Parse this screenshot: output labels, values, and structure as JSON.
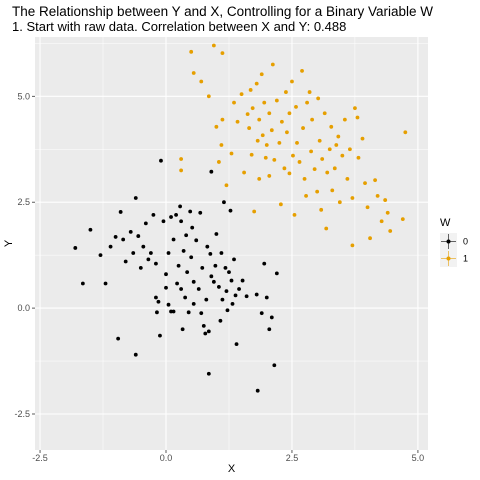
{
  "chart_data": {
    "type": "scatter",
    "title": "The Relationship between Y and X, Controlling for a Binary Variable W",
    "subtitle": "1. Start with raw data. Correlation between X and Y: 0.488",
    "xlabel": "X",
    "ylabel": "Y",
    "xlim": [
      -2.6,
      5.2
    ],
    "ylim": [
      -3.35,
      6.4
    ],
    "x_ticks": [
      -2.5,
      0.0,
      2.5,
      5.0
    ],
    "x_tick_labels": [
      "-2.5",
      "0.0",
      "2.5",
      "5.0"
    ],
    "y_ticks": [
      -2.5,
      0.0,
      2.5,
      5.0
    ],
    "y_tick_labels": [
      "-2.5",
      "0.0",
      "2.5",
      "5.0"
    ],
    "grid": true,
    "legend": {
      "title": "W",
      "placement": "right",
      "entries": [
        {
          "label": "0",
          "color": "#000000"
        },
        {
          "label": "1",
          "color": "#E69F00"
        }
      ]
    },
    "colors": {
      "panel_bg": "#EBEBEB",
      "grid": "#FFFFFF",
      "w0": "#000000",
      "w1": "#E69F00"
    },
    "series": [
      {
        "name": "0",
        "color": "#000000",
        "points": [
          [
            -1.8,
            1.42
          ],
          [
            -1.65,
            0.58
          ],
          [
            -1.5,
            1.85
          ],
          [
            -1.3,
            1.25
          ],
          [
            -1.2,
            0.58
          ],
          [
            -1.1,
            1.45
          ],
          [
            -1.0,
            1.68
          ],
          [
            -0.95,
            -0.72
          ],
          [
            -0.9,
            2.27
          ],
          [
            -0.85,
            1.62
          ],
          [
            -0.8,
            1.1
          ],
          [
            -0.7,
            1.8
          ],
          [
            -0.65,
            1.3
          ],
          [
            -0.6,
            2.6
          ],
          [
            -0.6,
            -1.1
          ],
          [
            -0.55,
            1.7
          ],
          [
            -0.5,
            0.95
          ],
          [
            -0.45,
            1.45
          ],
          [
            -0.4,
            2.0
          ],
          [
            -0.35,
            1.15
          ],
          [
            -0.3,
            1.3
          ],
          [
            -0.25,
            2.2
          ],
          [
            -0.2,
            1.05
          ],
          [
            -0.2,
            0.25
          ],
          [
            -0.18,
            -0.1
          ],
          [
            -0.15,
            0.15
          ],
          [
            -0.12,
            -0.65
          ],
          [
            -0.1,
            3.48
          ],
          [
            -0.05,
            2.05
          ],
          [
            0.0,
            0.8
          ],
          [
            0.0,
            0.48
          ],
          [
            0.05,
            0.08
          ],
          [
            0.05,
            1.3
          ],
          [
            0.1,
            2.15
          ],
          [
            0.1,
            -0.08
          ],
          [
            0.15,
            -0.08
          ],
          [
            0.15,
            1.62
          ],
          [
            0.2,
            2.2
          ],
          [
            0.22,
            0.58
          ],
          [
            0.25,
            1.0
          ],
          [
            0.28,
            2.4
          ],
          [
            0.3,
            2.05
          ],
          [
            0.3,
            0.45
          ],
          [
            0.33,
            -0.5
          ],
          [
            0.35,
            1.35
          ],
          [
            0.38,
            0.25
          ],
          [
            0.4,
            1.72
          ],
          [
            0.42,
            0.85
          ],
          [
            0.45,
            -0.1
          ],
          [
            0.48,
            2.28
          ],
          [
            0.5,
            1.2
          ],
          [
            0.52,
            1.9
          ],
          [
            0.55,
            0.1
          ],
          [
            0.55,
            0.62
          ],
          [
            0.6,
            1.6
          ],
          [
            0.65,
            0.45
          ],
          [
            0.68,
            2.25
          ],
          [
            0.7,
            -0.12
          ],
          [
            0.72,
            0.95
          ],
          [
            0.75,
            -0.42
          ],
          [
            0.78,
            -0.6
          ],
          [
            0.8,
            0.2
          ],
          [
            0.82,
            1.45
          ],
          [
            0.85,
            -0.55
          ],
          [
            0.85,
            -1.55
          ],
          [
            0.88,
            1.28
          ],
          [
            0.9,
            0.75
          ],
          [
            0.9,
            3.22
          ],
          [
            0.95,
            0.62
          ],
          [
            0.98,
            1.0
          ],
          [
            1.0,
            1.75
          ],
          [
            1.05,
            0.5
          ],
          [
            1.08,
            -0.3
          ],
          [
            1.1,
            1.3
          ],
          [
            1.12,
            0.2
          ],
          [
            1.15,
            2.5
          ],
          [
            1.18,
            0.95
          ],
          [
            1.2,
            0.4
          ],
          [
            1.22,
            -0.05
          ],
          [
            1.25,
            0.85
          ],
          [
            1.28,
            2.3
          ],
          [
            1.3,
            0.65
          ],
          [
            1.32,
            0.1
          ],
          [
            1.35,
            1.15
          ],
          [
            1.38,
            0.3
          ],
          [
            1.4,
            -0.85
          ],
          [
            1.45,
            0.45
          ],
          [
            1.52,
            0.65
          ],
          [
            1.6,
            0.28
          ],
          [
            1.8,
            0.32
          ],
          [
            1.82,
            -1.95
          ],
          [
            1.9,
            -0.12
          ],
          [
            1.95,
            1.05
          ],
          [
            2.0,
            0.25
          ],
          [
            2.05,
            -0.5
          ],
          [
            2.1,
            -0.22
          ],
          [
            2.15,
            -1.35
          ],
          [
            2.2,
            0.82
          ]
        ]
      },
      {
        "name": "1",
        "color": "#E69F00",
        "points": [
          [
            0.3,
            3.52
          ],
          [
            0.3,
            3.25
          ],
          [
            0.5,
            6.05
          ],
          [
            0.55,
            5.55
          ],
          [
            0.7,
            5.35
          ],
          [
            0.85,
            5.0
          ],
          [
            0.95,
            6.2
          ],
          [
            1.0,
            4.28
          ],
          [
            1.05,
            3.45
          ],
          [
            1.1,
            3.85
          ],
          [
            1.12,
            4.45
          ],
          [
            1.12,
            6.02
          ],
          [
            1.2,
            2.9
          ],
          [
            1.3,
            3.65
          ],
          [
            1.35,
            4.85
          ],
          [
            1.42,
            4.4
          ],
          [
            1.5,
            5.05
          ],
          [
            1.55,
            3.2
          ],
          [
            1.62,
            4.58
          ],
          [
            1.65,
            4.25
          ],
          [
            1.68,
            5.15
          ],
          [
            1.7,
            3.62
          ],
          [
            1.72,
            4.72
          ],
          [
            1.75,
            2.28
          ],
          [
            1.8,
            5.3
          ],
          [
            1.82,
            3.95
          ],
          [
            1.85,
            4.45
          ],
          [
            1.85,
            3.05
          ],
          [
            1.9,
            5.52
          ],
          [
            1.92,
            4.08
          ],
          [
            1.95,
            4.85
          ],
          [
            1.98,
            3.55
          ],
          [
            2.0,
            3.85
          ],
          [
            2.05,
            4.6
          ],
          [
            2.05,
            3.12
          ],
          [
            2.1,
            4.2
          ],
          [
            2.12,
            5.75
          ],
          [
            2.15,
            3.5
          ],
          [
            2.2,
            4.9
          ],
          [
            2.25,
            3.9
          ],
          [
            2.28,
            2.45
          ],
          [
            2.3,
            4.4
          ],
          [
            2.35,
            3.3
          ],
          [
            2.38,
            5.1
          ],
          [
            2.4,
            4.15
          ],
          [
            2.45,
            3.18
          ],
          [
            2.45,
            4.6
          ],
          [
            2.5,
            5.35
          ],
          [
            2.52,
            3.6
          ],
          [
            2.55,
            2.2
          ],
          [
            2.58,
            4.75
          ],
          [
            2.6,
            3.9
          ],
          [
            2.65,
            3.45
          ],
          [
            2.7,
            5.6
          ],
          [
            2.72,
            4.25
          ],
          [
            2.75,
            3.05
          ],
          [
            2.78,
            2.65
          ],
          [
            2.8,
            4.85
          ],
          [
            2.85,
            5.1
          ],
          [
            2.88,
            3.7
          ],
          [
            2.9,
            4.45
          ],
          [
            2.95,
            3.28
          ],
          [
            3.0,
            2.75
          ],
          [
            3.02,
            4.95
          ],
          [
            3.05,
            3.95
          ],
          [
            3.08,
            2.32
          ],
          [
            3.1,
            3.52
          ],
          [
            3.15,
            4.6
          ],
          [
            3.18,
            1.88
          ],
          [
            3.2,
            3.2
          ],
          [
            3.25,
            3.75
          ],
          [
            3.28,
            4.28
          ],
          [
            3.3,
            2.78
          ],
          [
            3.35,
            3.3
          ],
          [
            3.38,
            3.85
          ],
          [
            3.42,
            4.05
          ],
          [
            3.45,
            2.5
          ],
          [
            3.5,
            3.6
          ],
          [
            3.55,
            4.45
          ],
          [
            3.6,
            3.05
          ],
          [
            3.65,
            3.75
          ],
          [
            3.7,
            2.6
          ],
          [
            3.7,
            1.48
          ],
          [
            3.75,
            4.72
          ],
          [
            3.8,
            4.5
          ],
          [
            3.82,
            3.55
          ],
          [
            3.9,
            4.0
          ],
          [
            3.95,
            2.95
          ],
          [
            4.0,
            2.38
          ],
          [
            4.05,
            1.65
          ],
          [
            4.15,
            3.02
          ],
          [
            4.2,
            2.65
          ],
          [
            4.28,
            2.05
          ],
          [
            4.35,
            2.55
          ],
          [
            4.4,
            2.25
          ],
          [
            4.45,
            1.82
          ],
          [
            4.7,
            2.1
          ],
          [
            4.75,
            4.15
          ]
        ]
      }
    ]
  }
}
